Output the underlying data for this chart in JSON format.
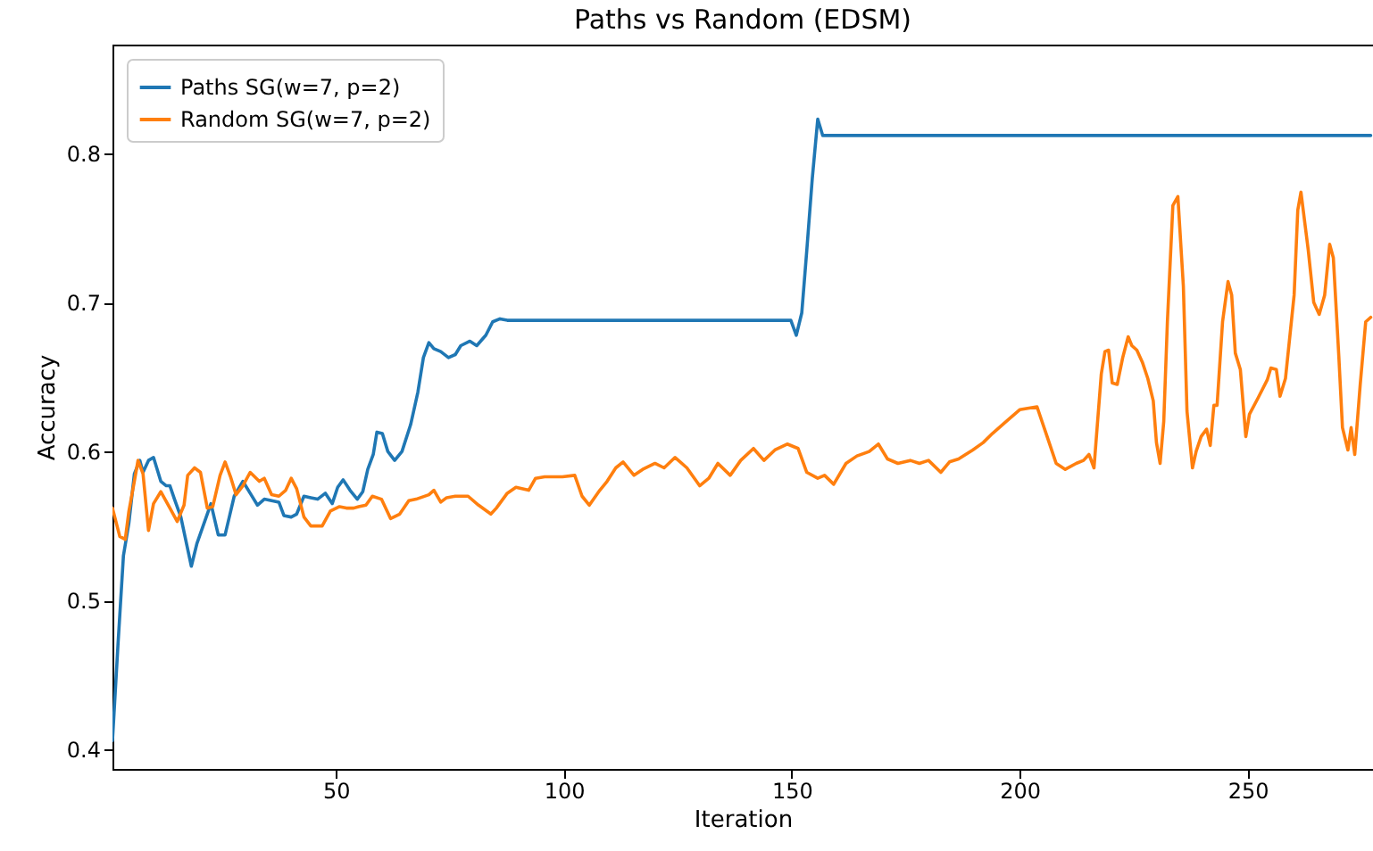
{
  "chart_data": {
    "type": "line",
    "title": "Paths vs Random (EDSM)",
    "xlabel": "Iteration",
    "ylabel": "Accuracy",
    "xlim": [
      1,
      277.5
    ],
    "ylim": [
      0.387,
      0.873
    ],
    "xticks": [
      50,
      100,
      150,
      200,
      250
    ],
    "yticks": [
      0.4,
      0.5,
      0.6,
      0.7,
      0.8
    ],
    "legend": "top left",
    "grid": false,
    "line_style": "solid",
    "marker": "none",
    "series": [
      {
        "name": "Paths SG(w=7, p=2)",
        "color": "#1f77b4",
        "x": [
          1,
          2.2,
          3.4,
          4.6,
          5.8,
          7,
          7.7,
          8.9,
          10,
          11.6,
          12.8,
          13.6,
          14.6,
          16,
          18.3,
          19.5,
          22.6,
          24.2,
          25.7,
          27.7,
          29.6,
          31.2,
          32.8,
          34.3,
          35.9,
          37.5,
          38.6,
          40.2,
          41.4,
          43,
          44.5,
          46,
          47.7,
          49.2,
          50.4,
          51.6,
          53.1,
          54.7,
          55.9,
          57,
          58.2,
          59,
          60.2,
          61.4,
          62.9,
          64.5,
          66.4,
          68,
          69.2,
          70.4,
          71.5,
          73,
          74.7,
          76.2,
          77.4,
          79.4,
          80.9,
          82.9,
          84.4,
          86,
          87.6,
          149.8,
          151,
          152.2,
          153.3,
          154.5,
          155.7,
          156.8,
          277
        ],
        "values": [
          0.406,
          0.47,
          0.53,
          0.552,
          0.585,
          0.594,
          0.586,
          0.594,
          0.596,
          0.58,
          0.577,
          0.577,
          0.568,
          0.556,
          0.523,
          0.538,
          0.565,
          0.544,
          0.544,
          0.57,
          0.58,
          0.572,
          0.564,
          0.568,
          0.567,
          0.566,
          0.557,
          0.556,
          0.558,
          0.57,
          0.569,
          0.568,
          0.572,
          0.565,
          0.576,
          0.581,
          0.574,
          0.568,
          0.573,
          0.588,
          0.598,
          0.613,
          0.612,
          0.6,
          0.594,
          0.6,
          0.618,
          0.64,
          0.663,
          0.673,
          0.669,
          0.667,
          0.663,
          0.665,
          0.671,
          0.674,
          0.671,
          0.678,
          0.687,
          0.689,
          0.688,
          0.688,
          0.678,
          0.693,
          0.735,
          0.783,
          0.823,
          0.812,
          0.812
        ]
      },
      {
        "name": "Random SG(w=7, p=2)",
        "color": "#ff7f0e",
        "x": [
          1,
          2.6,
          3.8,
          4.6,
          5.8,
          6.6,
          7.7,
          8.9,
          10,
          11.6,
          13.6,
          15.2,
          16.7,
          17.5,
          19,
          20.3,
          21.8,
          23,
          24.6,
          25.7,
          26.9,
          28.1,
          29.6,
          31.2,
          33.2,
          34.3,
          35.9,
          37.5,
          39,
          40.2,
          41.4,
          43,
          44.5,
          47,
          48.8,
          50.8,
          52.3,
          53.9,
          55,
          56.6,
          58,
          60,
          62,
          64,
          66,
          67.6,
          70.4,
          71.5,
          73,
          74.3,
          76.2,
          79,
          81.3,
          84,
          85.2,
          87.6,
          89.5,
          92.3,
          93.8,
          95.8,
          99.7,
          102.4,
          104,
          105.6,
          107.9,
          109.5,
          111.4,
          113,
          115.4,
          117.3,
          120,
          122,
          124.4,
          127,
          129.8,
          131.8,
          133.8,
          136.5,
          138.8,
          141.6,
          143.9,
          146.3,
          149,
          151.4,
          153.3,
          155.7,
          157.2,
          159.2,
          161.9,
          164.3,
          167,
          169,
          171,
          173.3,
          176,
          178,
          180,
          182.7,
          184.6,
          186.6,
          189.7,
          192,
          194,
          197,
          200,
          203.8,
          205.8,
          208,
          210,
          212.4,
          214,
          215.2,
          216.3,
          217.9,
          218.7,
          219.5,
          220.3,
          221.4,
          222.6,
          223.8,
          224.6,
          225.7,
          226.9,
          228.1,
          229.3,
          230,
          230.8,
          231.6,
          232.4,
          233.6,
          234.7,
          235.9,
          236.7,
          237.9,
          238.7,
          239.8,
          241,
          241.8,
          242.6,
          243.3,
          244.5,
          245.7,
          246.5,
          247.3,
          248.4,
          249.6,
          250.4,
          252.3,
          254.3,
          255.1,
          256.3,
          257.1,
          258.3,
          260.2,
          261,
          261.7,
          263.3,
          264.5,
          265.7,
          266.9,
          268,
          268.8,
          270,
          270.8,
          272,
          272.7,
          273.5,
          274.7,
          275.9,
          277
        ],
        "values": [
          0.562,
          0.543,
          0.541,
          0.56,
          0.58,
          0.594,
          0.585,
          0.547,
          0.565,
          0.573,
          0.562,
          0.553,
          0.564,
          0.584,
          0.589,
          0.586,
          0.562,
          0.563,
          0.584,
          0.593,
          0.583,
          0.571,
          0.577,
          0.586,
          0.58,
          0.582,
          0.571,
          0.57,
          0.574,
          0.582,
          0.575,
          0.556,
          0.55,
          0.55,
          0.56,
          0.563,
          0.562,
          0.562,
          0.563,
          0.564,
          0.57,
          0.568,
          0.555,
          0.558,
          0.567,
          0.568,
          0.571,
          0.574,
          0.566,
          0.569,
          0.57,
          0.57,
          0.564,
          0.558,
          0.562,
          0.572,
          0.576,
          0.574,
          0.582,
          0.583,
          0.583,
          0.584,
          0.57,
          0.564,
          0.574,
          0.58,
          0.589,
          0.593,
          0.584,
          0.588,
          0.592,
          0.589,
          0.596,
          0.589,
          0.577,
          0.582,
          0.592,
          0.584,
          0.594,
          0.602,
          0.594,
          0.601,
          0.605,
          0.602,
          0.586,
          0.582,
          0.584,
          0.578,
          0.592,
          0.597,
          0.6,
          0.605,
          0.595,
          0.592,
          0.594,
          0.592,
          0.594,
          0.586,
          0.593,
          0.595,
          0.601,
          0.606,
          0.612,
          0.62,
          0.628,
          0.63,
          0.612,
          0.592,
          0.588,
          0.592,
          0.594,
          0.598,
          0.589,
          0.652,
          0.667,
          0.668,
          0.646,
          0.645,
          0.663,
          0.677,
          0.671,
          0.668,
          0.66,
          0.649,
          0.634,
          0.606,
          0.592,
          0.62,
          0.687,
          0.765,
          0.771,
          0.711,
          0.627,
          0.589,
          0.6,
          0.61,
          0.615,
          0.604,
          0.631,
          0.631,
          0.687,
          0.714,
          0.705,
          0.666,
          0.655,
          0.61,
          0.625,
          0.636,
          0.648,
          0.656,
          0.655,
          0.637,
          0.649,
          0.705,
          0.762,
          0.774,
          0.735,
          0.7,
          0.692,
          0.705,
          0.739,
          0.73,
          0.664,
          0.616,
          0.601,
          0.616,
          0.598,
          0.645,
          0.687,
          0.69
        ]
      }
    ]
  }
}
